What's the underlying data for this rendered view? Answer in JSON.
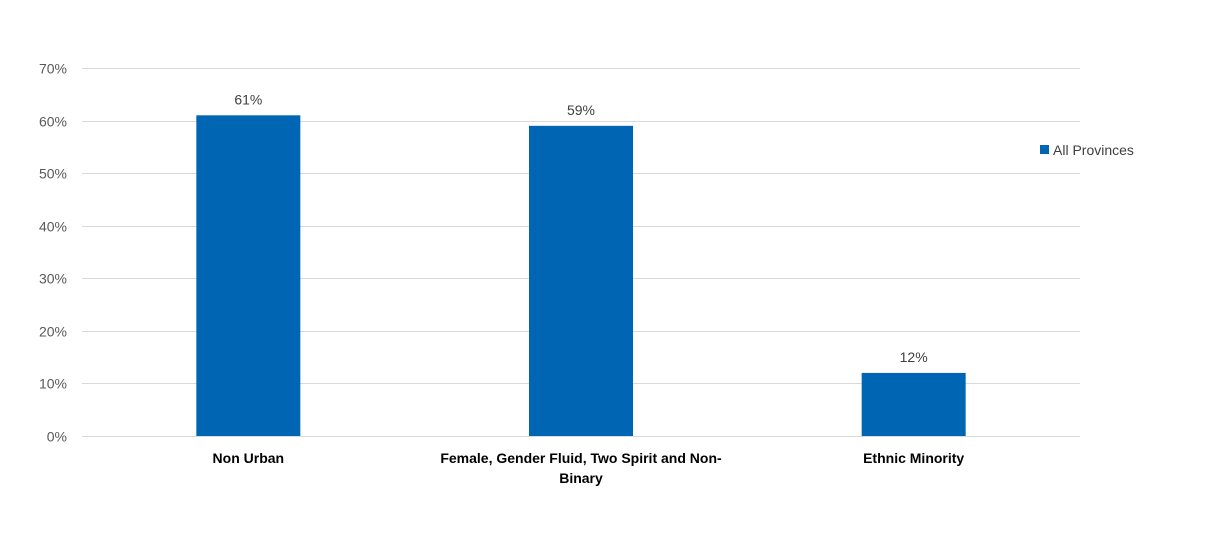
{
  "chart_data": {
    "type": "bar",
    "title": "",
    "xlabel": "",
    "ylabel": "",
    "categories": [
      [
        "Non Urban"
      ],
      [
        "Female, Gender Fluid, Two Spirit and Non-",
        "Binary"
      ],
      [
        "Ethnic Minority"
      ]
    ],
    "series": [
      {
        "name": "All Provinces",
        "values": [
          61,
          59,
          12
        ],
        "labels": [
          "61%",
          "59%",
          "12%"
        ],
        "color": "#0066b3"
      }
    ],
    "ylim": [
      0,
      70
    ],
    "yticks": [
      0,
      10,
      20,
      30,
      40,
      50,
      60,
      70
    ],
    "ytick_labels": [
      "0%",
      "10%",
      "20%",
      "30%",
      "40%",
      "50%",
      "60%",
      "70%"
    ],
    "grid": true,
    "legend_position": "right"
  }
}
